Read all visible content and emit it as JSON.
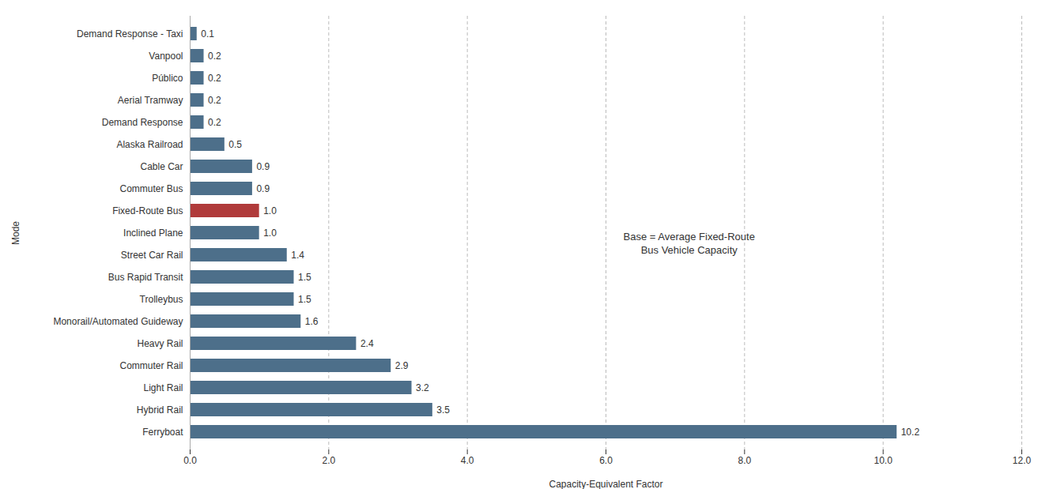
{
  "chart_data": {
    "type": "bar",
    "orientation": "horizontal",
    "categories": [
      "Demand Response - Taxi",
      "Vanpool",
      "Público",
      "Aerial Tramway",
      "Demand Response",
      "Alaska Railroad",
      "Cable Car",
      "Commuter Bus",
      "Fixed-Route Bus",
      "Inclined Plane",
      "Street Car Rail",
      "Bus Rapid Transit",
      "Trolleybus",
      "Monorail/Automated Guideway",
      "Heavy Rail",
      "Commuter Rail",
      "Light Rail",
      "Hybrid Rail",
      "Ferryboat"
    ],
    "values": [
      0.1,
      0.2,
      0.2,
      0.2,
      0.2,
      0.5,
      0.9,
      0.9,
      1.0,
      1.0,
      1.4,
      1.5,
      1.5,
      1.6,
      2.4,
      2.9,
      3.2,
      3.5,
      10.2
    ],
    "value_labels": [
      "0.1",
      "0.2",
      "0.2",
      "0.2",
      "0.2",
      "0.5",
      "0.9",
      "0.9",
      "1.0",
      "1.0",
      "1.4",
      "1.5",
      "1.5",
      "1.6",
      "2.4",
      "2.9",
      "3.2",
      "3.5",
      "10.2"
    ],
    "colors": [
      "#4d6f8a",
      "#4d6f8a",
      "#4d6f8a",
      "#4d6f8a",
      "#4d6f8a",
      "#4d6f8a",
      "#4d6f8a",
      "#4d6f8a",
      "#b03a3a",
      "#4d6f8a",
      "#4d6f8a",
      "#4d6f8a",
      "#4d6f8a",
      "#4d6f8a",
      "#4d6f8a",
      "#4d6f8a",
      "#4d6f8a",
      "#4d6f8a",
      "#4d6f8a"
    ],
    "xlabel": "Capacity-Equivalent Factor",
    "ylabel": "Mode",
    "xlim": [
      0,
      12.0
    ],
    "xticks": [
      {
        "value": 0,
        "label": "0.0"
      },
      {
        "value": 2,
        "label": "2.0"
      },
      {
        "value": 4,
        "label": "4.0"
      },
      {
        "value": 6,
        "label": "6.0"
      },
      {
        "value": 8,
        "label": "8.0"
      },
      {
        "value": 10,
        "label": "10.0"
      },
      {
        "value": 12,
        "label": "12.0"
      }
    ],
    "annotation": "Base = Average Fixed-Route\nBus Vehicle Capacity",
    "grid": true,
    "data_labels": true
  }
}
